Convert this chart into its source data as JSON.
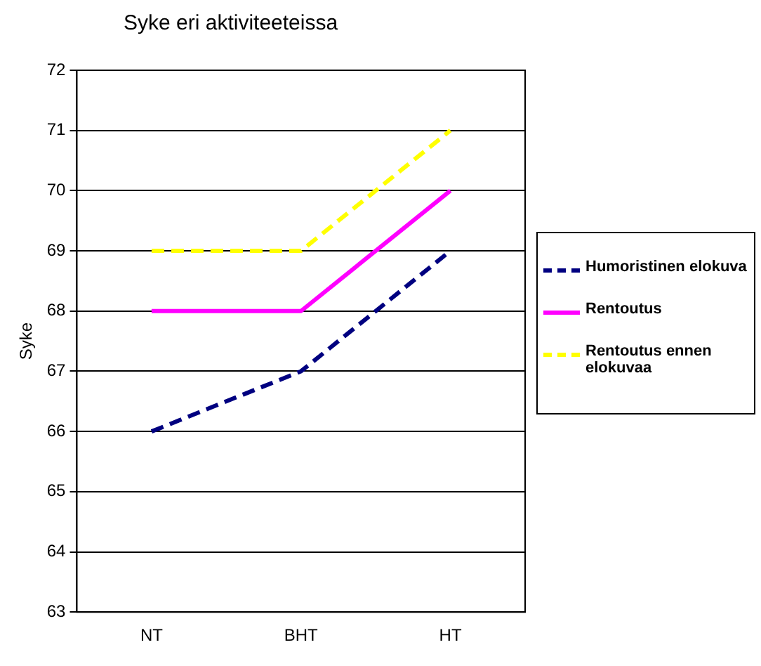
{
  "chart_data": {
    "type": "line",
    "title": "Syke eri aktiviteeteissa",
    "ylabel": "Syke",
    "categories": [
      "NT",
      "BHT",
      "HT"
    ],
    "series": [
      {
        "name": "Humoristinen elokuva",
        "color": "#000080",
        "values": [
          66,
          67,
          69
        ],
        "line_style": "dashed"
      },
      {
        "name": "Rentoutus",
        "color": "#ff00ff",
        "values": [
          68,
          68,
          70
        ],
        "line_style": "solid"
      },
      {
        "name": "Rentoutus ennen elokuvaa",
        "color": "#ffff00",
        "values": [
          69,
          69,
          71
        ],
        "line_style": "dashed"
      }
    ],
    "ylim": [
      63,
      72
    ],
    "yticks": [
      63,
      64,
      65,
      66,
      67,
      68,
      69,
      70,
      71,
      72
    ],
    "grid": "y",
    "legend": "right",
    "marker": "none"
  }
}
